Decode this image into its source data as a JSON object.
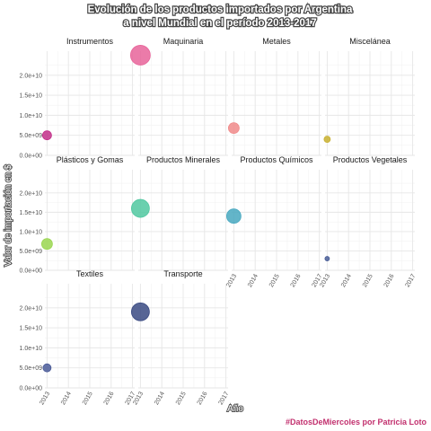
{
  "chart_data": {
    "type": "scatter",
    "title_line1": "Evolución de los productos importados por Argentina",
    "title_line2": "a nivel Mundial en el período 2013-2017",
    "xlabel": "Año",
    "ylabel": "Valor de importación en $",
    "caption": "#DatosDeMiercoles por Patricia Loto",
    "x_ticks": [
      "2013",
      "2014",
      "2015",
      "2016",
      "2017"
    ],
    "y_ticks": [
      "0.0e+00",
      "5.0e+09",
      "1.0e+10",
      "1.5e+10",
      "2.0e+10"
    ],
    "ylim": [
      0,
      26000000000.0
    ],
    "xlim": [
      2012.9,
      2017.1
    ],
    "grid": true,
    "legend": "none",
    "facets": [
      {
        "name": "Instrumentos",
        "x": 2013,
        "y": 5000000000.0,
        "color": "#c2308a",
        "radius": 5
      },
      {
        "name": "Maquinaria",
        "x": 2013,
        "y": 25000000000.0,
        "color": "#e8649a",
        "radius": 11
      },
      {
        "name": "Metales",
        "x": 2013,
        "y": 6800000000.0,
        "color": "#f08a8a",
        "radius": 6
      },
      {
        "name": "Miscelánea",
        "x": 2013,
        "y": 4000000000.0,
        "color": "#c8b030",
        "radius": 3.5
      },
      {
        "name": "Plásticos y Gomas",
        "x": 2013,
        "y": 6800000000.0,
        "color": "#9ad650",
        "radius": 6
      },
      {
        "name": "Productos Minerales",
        "x": 2013,
        "y": 16000000000.0,
        "color": "#50c8a0",
        "radius": 10
      },
      {
        "name": "Productos Químicos",
        "x": 2013,
        "y": 14000000000.0,
        "color": "#48a8c0",
        "radius": 8
      },
      {
        "name": "Productos Vegetales",
        "x": 2013,
        "y": 3000000000.0,
        "color": "#4a5e98",
        "radius": 2.5
      },
      {
        "name": "Textiles",
        "x": 2013,
        "y": 5000000000.0,
        "color": "#4a5a98",
        "radius": 4.5
      },
      {
        "name": "Transporte",
        "x": 2013,
        "y": 19000000000.0,
        "color": "#3a4a82",
        "radius": 10
      }
    ],
    "caption_color": "#c2306e"
  }
}
